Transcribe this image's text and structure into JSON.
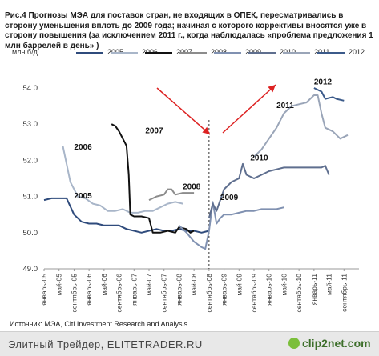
{
  "title": "Рис.4 Прогнозы МЭА для поставок стран, не входящих в ОПЕК, пересматривались в сторону уменьшения вплоть до 2009 года; начиная с которого коррективы вносятся уже в сторону повышения (за исключением 2011 г., когда наблюдалась «проблема предложения 1 млн баррелей в день» )",
  "source": "Источник: МЭА, Citi Investment Research and Analysis",
  "footer": {
    "text": "Элитный Трейдер, ELITETRADER.RU",
    "logo": "clip2net.com"
  },
  "chart_data": {
    "type": "line",
    "ylabel": "млн б/д",
    "ylim": [
      49.0,
      54.0
    ],
    "yticks": [
      "49.0",
      "50.0",
      "51.0",
      "52.0",
      "53.0",
      "54.0"
    ],
    "x_tick_labels": [
      "январь-05",
      "май-05",
      "сентябрь-05",
      "январь-06",
      "май-06",
      "сентябрь-06",
      "январь-07",
      "май-07",
      "сентябрь-07",
      "январь-08",
      "май-08",
      "сентябрь-08",
      "январь-09",
      "май-09",
      "сентябрь-09",
      "январь-10",
      "май-10",
      "сентябрь-10",
      "январь-11",
      "май-11",
      "сентябрь-11"
    ],
    "grid": false,
    "legend_position": "top",
    "series": [
      {
        "name": "2005",
        "color": "#2f4b7c",
        "label": "2005",
        "points": [
          [
            0,
            50.9
          ],
          [
            2,
            50.95
          ],
          [
            4,
            50.95
          ],
          [
            6,
            50.95
          ],
          [
            8,
            50.5
          ],
          [
            10,
            50.3
          ],
          [
            12,
            50.25
          ],
          [
            14,
            50.25
          ],
          [
            16,
            50.2
          ],
          [
            18,
            50.2
          ],
          [
            20,
            50.2
          ],
          [
            22,
            50.1
          ],
          [
            24,
            50.05
          ],
          [
            26,
            50.0
          ],
          [
            28,
            50.05
          ],
          [
            30,
            50.1
          ],
          [
            32,
            50.05
          ],
          [
            34,
            50.05
          ],
          [
            36,
            50.1
          ],
          [
            38,
            50.05
          ],
          [
            40,
            50.05
          ],
          [
            42,
            50.0
          ],
          [
            44,
            50.05
          ]
        ]
      },
      {
        "name": "2006",
        "color": "#a9b6c9",
        "label": "2006",
        "points": [
          [
            5,
            52.4
          ],
          [
            7,
            51.4
          ],
          [
            9,
            51.0
          ],
          [
            11,
            50.95
          ],
          [
            13,
            50.8
          ],
          [
            15,
            50.75
          ],
          [
            17,
            50.6
          ],
          [
            19,
            50.6
          ],
          [
            21,
            50.65
          ],
          [
            23,
            50.55
          ],
          [
            25,
            50.55
          ],
          [
            27,
            50.6
          ],
          [
            29,
            50.6
          ],
          [
            31,
            50.7
          ],
          [
            33,
            50.8
          ],
          [
            35,
            50.85
          ],
          [
            37,
            50.8
          ]
        ]
      },
      {
        "name": "2007",
        "color": "#111111",
        "label": "2007",
        "points": [
          [
            18,
            53.0
          ],
          [
            19,
            52.95
          ],
          [
            20,
            52.8
          ],
          [
            21,
            52.6
          ],
          [
            22,
            52.4
          ],
          [
            22.6,
            51.6
          ],
          [
            23,
            50.5
          ],
          [
            24,
            50.45
          ],
          [
            26,
            50.45
          ],
          [
            28,
            50.4
          ],
          [
            29,
            50.0
          ],
          [
            31,
            50.0
          ],
          [
            33,
            50.05
          ],
          [
            35,
            50.0
          ],
          [
            36,
            50.15
          ],
          [
            38,
            50.1
          ],
          [
            39,
            50.0
          ],
          [
            40,
            50.05
          ]
        ]
      },
      {
        "name": "2008",
        "color": "#8c8c8c",
        "label": "2008",
        "points": [
          [
            28,
            50.9
          ],
          [
            30,
            51.0
          ],
          [
            32,
            51.05
          ],
          [
            33,
            51.2
          ],
          [
            34,
            51.2
          ],
          [
            35,
            51.05
          ],
          [
            37,
            51.1
          ],
          [
            39,
            51.1
          ],
          [
            40,
            51.1
          ]
        ]
      },
      {
        "name": "2009",
        "color": "#8091b1",
        "label": "2009",
        "points": [
          [
            36,
            50.2
          ],
          [
            38,
            50.0
          ],
          [
            40,
            49.75
          ],
          [
            42,
            49.6
          ],
          [
            43,
            49.55
          ],
          [
            44,
            50.05
          ],
          [
            45,
            50.85
          ],
          [
            46,
            50.25
          ],
          [
            47,
            50.4
          ],
          [
            48,
            50.5
          ],
          [
            49,
            50.5
          ],
          [
            50,
            50.5
          ],
          [
            52,
            50.55
          ],
          [
            54,
            50.6
          ],
          [
            56,
            50.6
          ],
          [
            58,
            50.65
          ],
          [
            60,
            50.65
          ],
          [
            62,
            50.65
          ],
          [
            64,
            50.7
          ]
        ]
      },
      {
        "name": "2010",
        "color": "#5f6f8f",
        "label": "2010",
        "points": [
          [
            44,
            50.4
          ],
          [
            45,
            50.8
          ],
          [
            46,
            50.6
          ],
          [
            47,
            50.9
          ],
          [
            48,
            51.2
          ],
          [
            50,
            51.4
          ],
          [
            52,
            51.5
          ],
          [
            53,
            51.9
          ],
          [
            54,
            51.6
          ],
          [
            56,
            51.5
          ],
          [
            58,
            51.6
          ],
          [
            60,
            51.7
          ],
          [
            62,
            51.75
          ],
          [
            64,
            51.8
          ],
          [
            66,
            51.8
          ],
          [
            68,
            51.8
          ],
          [
            70,
            51.8
          ],
          [
            72,
            51.8
          ],
          [
            74,
            51.8
          ],
          [
            75,
            51.85
          ],
          [
            76,
            51.6
          ]
        ]
      },
      {
        "name": "2011",
        "color": "#9aa5b8",
        "label": "2011",
        "points": [
          [
            56,
            52.1
          ],
          [
            58,
            52.3
          ],
          [
            60,
            52.6
          ],
          [
            62,
            52.9
          ],
          [
            64,
            53.3
          ],
          [
            66,
            53.5
          ],
          [
            68,
            53.55
          ],
          [
            70,
            53.6
          ],
          [
            72,
            53.8
          ],
          [
            73,
            53.8
          ],
          [
            74,
            53.3
          ],
          [
            75,
            52.9
          ],
          [
            77,
            52.8
          ],
          [
            79,
            52.6
          ],
          [
            81,
            52.7
          ]
        ]
      },
      {
        "name": "2012",
        "color": "#3b5a8a",
        "label": "2012",
        "points": [
          [
            72,
            54.0
          ],
          [
            74,
            53.9
          ],
          [
            75,
            53.7
          ],
          [
            77,
            53.75
          ],
          [
            78,
            53.7
          ],
          [
            80,
            53.65
          ]
        ]
      }
    ],
    "annotations": [
      "2007",
      "2006",
      "2005",
      "2008",
      "2009",
      "2010",
      "2011",
      "2012"
    ]
  }
}
